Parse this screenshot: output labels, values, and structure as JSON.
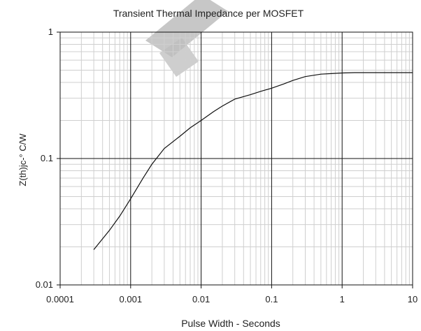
{
  "chart_data": {
    "type": "line",
    "title": "Transient Thermal Impedance per MOSFET",
    "xlabel": "Pulse Width - Seconds",
    "ylabel": "Z(th)jc-° C/W",
    "x_scale": "log",
    "y_scale": "log",
    "xlim": [
      0.0001,
      10
    ],
    "ylim": [
      0.01,
      1
    ],
    "grid": true,
    "x_ticks": [
      "0.0001",
      "0.001",
      "0.01",
      "0.1",
      "1",
      "10"
    ],
    "y_ticks": [
      "0.01",
      "0.1",
      "1"
    ],
    "series": [
      {
        "x": [
          0.0003,
          0.0005,
          0.0007,
          0.001,
          0.0015,
          0.002,
          0.003,
          0.005,
          0.007,
          0.01,
          0.015,
          0.02,
          0.03,
          0.05,
          0.07,
          0.1,
          0.15,
          0.2,
          0.3,
          0.5,
          0.7,
          1,
          1.5,
          2,
          3,
          5,
          10
        ],
        "y": [
          0.019,
          0.027,
          0.035,
          0.048,
          0.07,
          0.09,
          0.12,
          0.15,
          0.175,
          0.2,
          0.235,
          0.26,
          0.295,
          0.32,
          0.34,
          0.36,
          0.39,
          0.415,
          0.445,
          0.465,
          0.47,
          0.475,
          0.478,
          0.478,
          0.478,
          0.478,
          0.478
        ]
      }
    ]
  },
  "colors": {
    "line": "#111111",
    "major_grid": "#111111",
    "minor_grid": "#cfcfcf",
    "watermark": "#bdbdbd"
  }
}
